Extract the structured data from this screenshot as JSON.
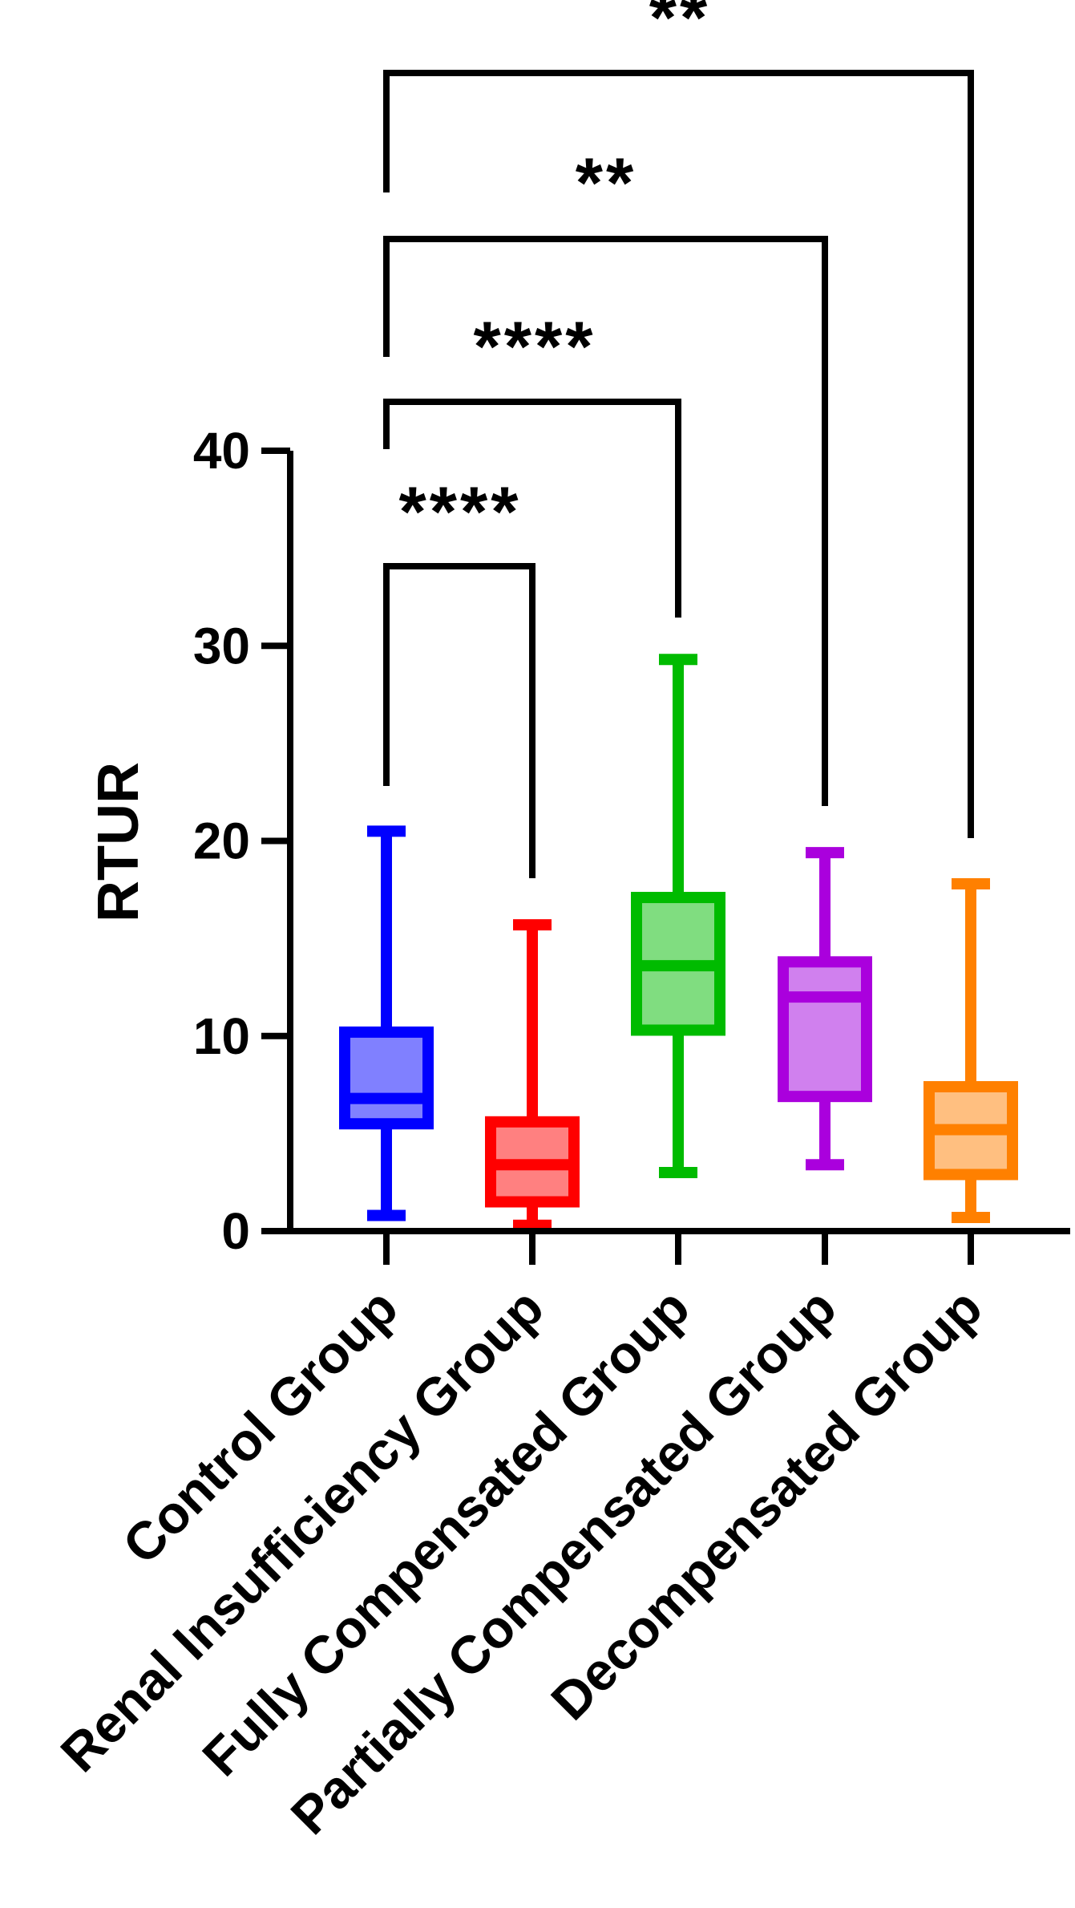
{
  "chart_data": {
    "type": "boxplot",
    "ylabel": "RTUR",
    "ylim": [
      0,
      40
    ],
    "yticks": [
      "0",
      "10",
      "20",
      "30",
      "40"
    ],
    "grid": false,
    "categories": [
      "Control Group",
      "Renal Insufficiency Group",
      "Fully Compensated Group",
      "Partially Compensated Group",
      "Decompensated Group"
    ],
    "boxes": [
      {
        "min": 0.8,
        "q1": 5.5,
        "median": 6.8,
        "q3": 10.2,
        "max": 20.5,
        "color": "#0000ff",
        "fill": "#8080ff"
      },
      {
        "min": 0.3,
        "q1": 1.5,
        "median": 3.4,
        "q3": 5.6,
        "max": 15.7,
        "color": "#ff0000",
        "fill": "#ff8080"
      },
      {
        "min": 3.0,
        "q1": 10.3,
        "median": 13.6,
        "q3": 17.1,
        "max": 29.3,
        "color": "#00bb00",
        "fill": "#80dd80"
      },
      {
        "min": 3.4,
        "q1": 6.9,
        "median": 12.0,
        "q3": 13.8,
        "max": 19.4,
        "color": "#aa00dd",
        "fill": "#d080ee"
      },
      {
        "min": 0.7,
        "q1": 2.9,
        "median": 5.2,
        "q3": 7.4,
        "max": 17.8,
        "color": "#ff8000",
        "fill": "#ffbf80"
      }
    ],
    "comparisons": [
      {
        "from": 0,
        "to": 1,
        "label": "****"
      },
      {
        "from": 0,
        "to": 2,
        "label": "****"
      },
      {
        "from": 0,
        "to": 3,
        "label": "**"
      },
      {
        "from": 0,
        "to": 4,
        "label": "**"
      }
    ]
  }
}
